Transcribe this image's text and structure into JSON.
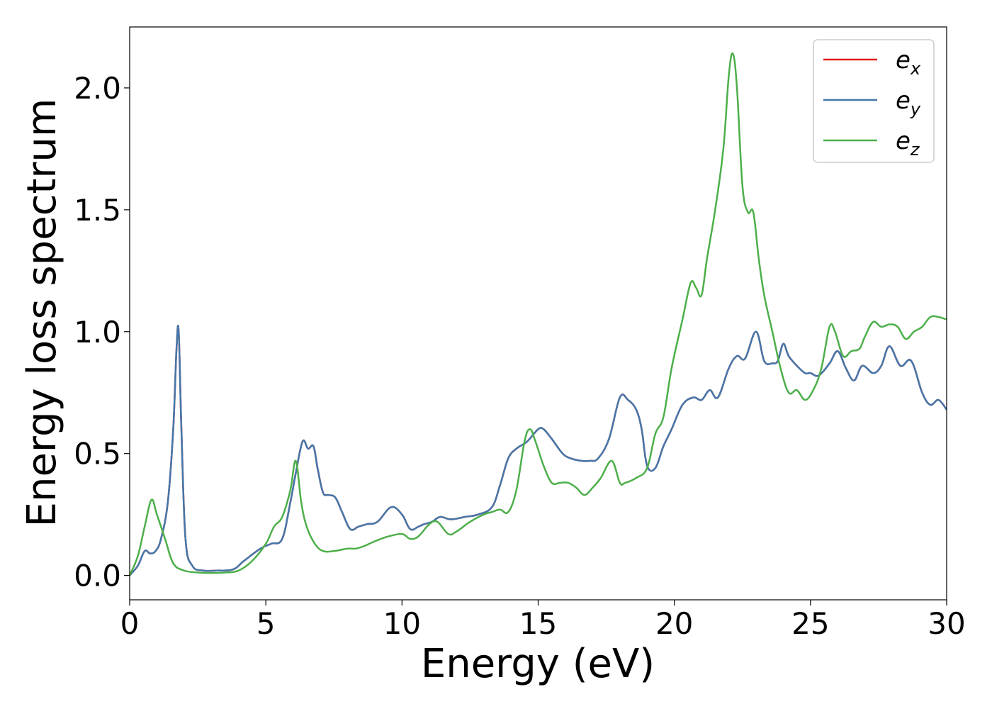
{
  "chart_data": {
    "type": "line",
    "title": "",
    "xlabel": "Energy (eV)",
    "ylabel": "Energy loss spectrum",
    "xlim": [
      0,
      30
    ],
    "ylim": [
      -0.1,
      2.25
    ],
    "xticks": [
      0,
      5,
      10,
      15,
      20,
      25,
      30
    ],
    "xtick_labels": [
      "0",
      "5",
      "10",
      "15",
      "20",
      "25",
      "30"
    ],
    "yticks": [
      0.0,
      0.5,
      1.0,
      1.5,
      2.0
    ],
    "ytick_labels": [
      "0.0",
      "0.5",
      "1.0",
      "1.5",
      "2.0"
    ],
    "grid": false,
    "legend_position": "top-right",
    "series": [
      {
        "name": "e_x",
        "legend_base": "e",
        "legend_sub": "x",
        "color": "#e41a1c",
        "x": [
          0,
          0.3,
          0.55,
          0.75,
          0.95,
          1.15,
          1.4,
          1.6,
          1.72,
          1.8,
          1.9,
          2.05,
          2.3,
          2.7,
          3.2,
          3.8,
          4.2,
          4.8,
          5.2,
          5.6,
          5.9,
          6.1,
          6.35,
          6.55,
          6.75,
          6.9,
          7.1,
          7.3,
          7.55,
          7.8,
          8.1,
          8.4,
          8.7,
          9.1,
          9.6,
          10.0,
          10.3,
          10.6,
          10.8,
          11.1,
          11.4,
          11.8,
          12.3,
          12.8,
          13.3,
          13.6,
          13.9,
          14.2,
          14.6,
          15.0,
          15.2,
          15.5,
          15.9,
          16.2,
          16.6,
          16.9,
          17.2,
          17.6,
          18.0,
          18.3,
          18.6,
          18.8,
          19.0,
          19.3,
          19.6,
          19.9,
          20.3,
          20.7,
          21.0,
          21.3,
          21.6,
          22.0,
          22.3,
          22.6,
          23.0,
          23.3,
          23.6,
          23.8,
          24.0,
          24.2,
          24.5,
          24.8,
          25.0,
          25.3,
          25.7,
          26.0,
          26.3,
          26.6,
          26.9,
          27.3,
          27.6,
          27.9,
          28.3,
          28.7,
          29.1,
          29.4,
          29.7,
          30.0
        ],
        "y": [
          0.0,
          0.04,
          0.1,
          0.09,
          0.1,
          0.15,
          0.3,
          0.6,
          0.93,
          1.0,
          0.6,
          0.15,
          0.04,
          0.02,
          0.02,
          0.025,
          0.06,
          0.11,
          0.13,
          0.15,
          0.3,
          0.42,
          0.55,
          0.52,
          0.53,
          0.44,
          0.34,
          0.33,
          0.32,
          0.26,
          0.19,
          0.2,
          0.21,
          0.22,
          0.28,
          0.25,
          0.19,
          0.2,
          0.21,
          0.22,
          0.24,
          0.23,
          0.24,
          0.25,
          0.28,
          0.37,
          0.48,
          0.52,
          0.55,
          0.6,
          0.6,
          0.56,
          0.5,
          0.48,
          0.47,
          0.47,
          0.48,
          0.56,
          0.73,
          0.72,
          0.68,
          0.6,
          0.45,
          0.44,
          0.53,
          0.6,
          0.7,
          0.73,
          0.72,
          0.76,
          0.73,
          0.85,
          0.9,
          0.89,
          1.0,
          0.88,
          0.87,
          0.88,
          0.95,
          0.9,
          0.86,
          0.83,
          0.83,
          0.82,
          0.87,
          0.92,
          0.85,
          0.8,
          0.86,
          0.83,
          0.86,
          0.94,
          0.86,
          0.88,
          0.75,
          0.7,
          0.72,
          0.68
        ]
      },
      {
        "name": "e_y",
        "legend_base": "e",
        "legend_sub": "y",
        "color": "#4477aa",
        "x": [
          0,
          0.3,
          0.55,
          0.75,
          0.95,
          1.15,
          1.4,
          1.6,
          1.72,
          1.8,
          1.9,
          2.05,
          2.3,
          2.7,
          3.2,
          3.8,
          4.2,
          4.8,
          5.2,
          5.6,
          5.9,
          6.1,
          6.35,
          6.55,
          6.75,
          6.9,
          7.1,
          7.3,
          7.55,
          7.8,
          8.1,
          8.4,
          8.7,
          9.1,
          9.6,
          10.0,
          10.3,
          10.6,
          10.8,
          11.1,
          11.4,
          11.8,
          12.3,
          12.8,
          13.3,
          13.6,
          13.9,
          14.2,
          14.6,
          15.0,
          15.2,
          15.5,
          15.9,
          16.2,
          16.6,
          16.9,
          17.2,
          17.6,
          18.0,
          18.3,
          18.6,
          18.8,
          19.0,
          19.3,
          19.6,
          19.9,
          20.3,
          20.7,
          21.0,
          21.3,
          21.6,
          22.0,
          22.3,
          22.6,
          23.0,
          23.3,
          23.6,
          23.8,
          24.0,
          24.2,
          24.5,
          24.8,
          25.0,
          25.3,
          25.7,
          26.0,
          26.3,
          26.6,
          26.9,
          27.3,
          27.6,
          27.9,
          28.3,
          28.7,
          29.1,
          29.4,
          29.7,
          30.0
        ],
        "y": [
          0.0,
          0.04,
          0.1,
          0.09,
          0.1,
          0.15,
          0.3,
          0.6,
          0.93,
          1.0,
          0.6,
          0.15,
          0.04,
          0.02,
          0.02,
          0.025,
          0.06,
          0.11,
          0.13,
          0.15,
          0.3,
          0.42,
          0.55,
          0.52,
          0.53,
          0.44,
          0.34,
          0.33,
          0.32,
          0.26,
          0.19,
          0.2,
          0.21,
          0.22,
          0.28,
          0.25,
          0.19,
          0.2,
          0.21,
          0.22,
          0.24,
          0.23,
          0.24,
          0.25,
          0.28,
          0.37,
          0.48,
          0.52,
          0.55,
          0.6,
          0.6,
          0.56,
          0.5,
          0.48,
          0.47,
          0.47,
          0.48,
          0.56,
          0.73,
          0.72,
          0.68,
          0.6,
          0.45,
          0.44,
          0.53,
          0.6,
          0.7,
          0.73,
          0.72,
          0.76,
          0.73,
          0.85,
          0.9,
          0.89,
          1.0,
          0.88,
          0.87,
          0.88,
          0.95,
          0.9,
          0.86,
          0.83,
          0.83,
          0.82,
          0.87,
          0.92,
          0.85,
          0.8,
          0.86,
          0.83,
          0.86,
          0.94,
          0.86,
          0.88,
          0.75,
          0.7,
          0.72,
          0.68
        ]
      },
      {
        "name": "e_z",
        "legend_base": "e",
        "legend_sub": "z",
        "color": "#4daf4a",
        "x": [
          0,
          0.3,
          0.55,
          0.8,
          1.0,
          1.3,
          1.6,
          2.0,
          2.5,
          3.0,
          3.5,
          4.0,
          4.5,
          5.0,
          5.3,
          5.6,
          5.9,
          6.1,
          6.3,
          6.5,
          6.8,
          7.1,
          7.5,
          8.0,
          8.3,
          8.6,
          9.0,
          9.5,
          10.0,
          10.3,
          10.6,
          11.0,
          11.3,
          11.7,
          12.0,
          12.5,
          13.0,
          13.3,
          13.6,
          13.9,
          14.2,
          14.5,
          14.7,
          14.9,
          15.2,
          15.5,
          15.8,
          16.1,
          16.4,
          16.7,
          17.0,
          17.3,
          17.7,
          18.0,
          18.2,
          18.6,
          19.0,
          19.3,
          19.6,
          19.9,
          20.3,
          20.6,
          20.8,
          21.0,
          21.2,
          21.5,
          21.8,
          22.0,
          22.15,
          22.3,
          22.5,
          22.7,
          22.9,
          23.1,
          23.3,
          23.6,
          23.9,
          24.2,
          24.5,
          24.8,
          25.1,
          25.4,
          25.7,
          25.9,
          26.2,
          26.5,
          26.8,
          27.0,
          27.3,
          27.6,
          27.9,
          28.2,
          28.5,
          28.8,
          29.1,
          29.4,
          29.7,
          30.0
        ],
        "y": [
          0.0,
          0.08,
          0.2,
          0.31,
          0.25,
          0.15,
          0.05,
          0.02,
          0.012,
          0.01,
          0.012,
          0.02,
          0.06,
          0.13,
          0.2,
          0.24,
          0.35,
          0.47,
          0.3,
          0.2,
          0.13,
          0.1,
          0.1,
          0.11,
          0.11,
          0.12,
          0.14,
          0.16,
          0.17,
          0.15,
          0.16,
          0.21,
          0.22,
          0.17,
          0.18,
          0.22,
          0.25,
          0.26,
          0.27,
          0.26,
          0.35,
          0.55,
          0.6,
          0.55,
          0.45,
          0.38,
          0.38,
          0.38,
          0.36,
          0.33,
          0.36,
          0.4,
          0.47,
          0.38,
          0.38,
          0.4,
          0.44,
          0.58,
          0.65,
          0.85,
          1.05,
          1.2,
          1.18,
          1.15,
          1.3,
          1.5,
          1.75,
          2.05,
          2.14,
          2.0,
          1.6,
          1.49,
          1.49,
          1.3,
          1.15,
          1.0,
          0.85,
          0.75,
          0.76,
          0.72,
          0.76,
          0.85,
          1.02,
          1.0,
          0.9,
          0.92,
          0.93,
          0.98,
          1.04,
          1.02,
          1.03,
          1.02,
          0.97,
          1.0,
          1.02,
          1.06,
          1.06,
          1.05
        ]
      }
    ]
  }
}
